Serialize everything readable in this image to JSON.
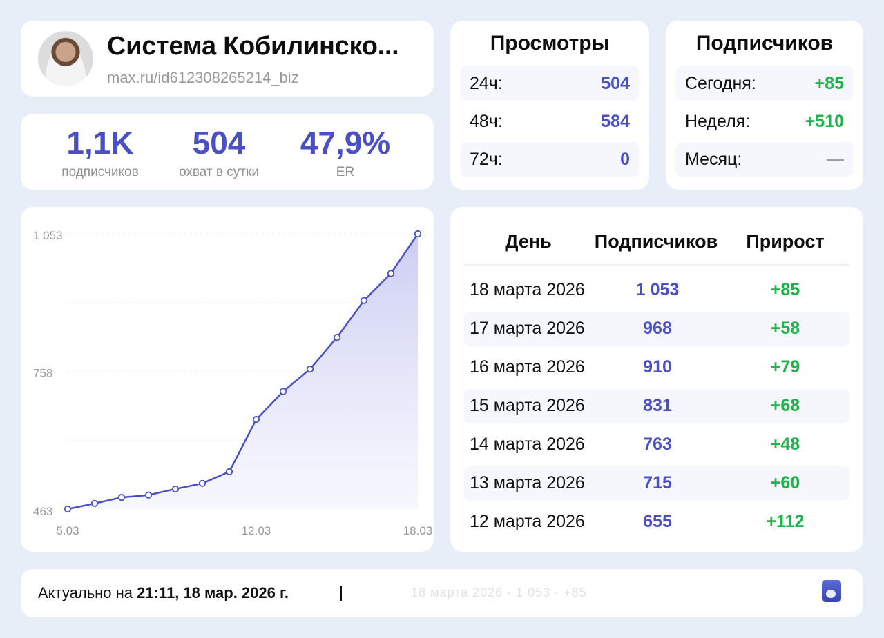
{
  "profile": {
    "name": "Система Кобилинско...",
    "url": "max.ru/id612308265214_biz",
    "avatar_icon": "user-photo"
  },
  "stats": [
    {
      "value": "1,1K",
      "label": "подписчиков"
    },
    {
      "value": "504",
      "label": "охват в сутки"
    },
    {
      "value": "47,9%",
      "label": "ER"
    }
  ],
  "views": {
    "title": "Просмотры",
    "rows": [
      {
        "key": "24ч:",
        "value": "504"
      },
      {
        "key": "48ч:",
        "value": "584"
      },
      {
        "key": "72ч:",
        "value": "0"
      }
    ]
  },
  "subscribers": {
    "title": "Подписчиков",
    "rows": [
      {
        "key": "Сегодня:",
        "value": "+85"
      },
      {
        "key": "Неделя:",
        "value": "+510"
      },
      {
        "key": "Месяц:",
        "value": "—"
      }
    ]
  },
  "chart_data": {
    "type": "area",
    "title": "",
    "xlabel": "",
    "ylabel": "",
    "x": [
      "5.03",
      "6.03",
      "7.03",
      "8.03",
      "9.03",
      "10.03",
      "11.03",
      "12.03",
      "13.03",
      "14.03",
      "15.03",
      "16.03",
      "17.03",
      "18.03"
    ],
    "values": [
      463,
      475,
      488,
      493,
      506,
      518,
      543,
      655,
      715,
      763,
      831,
      910,
      968,
      1053
    ],
    "y_ticks": [
      "1 053",
      "758",
      "463"
    ],
    "x_ticks": [
      "5.03",
      "12.03",
      "18.03"
    ],
    "ylim": [
      463,
      1053
    ],
    "grid": true,
    "line_color": "#4a4fc4",
    "fill_color": "#d6d8f5"
  },
  "table": {
    "headers": [
      "День",
      "Подписчиков",
      "Прирост"
    ],
    "rows": [
      {
        "day": "18 марта 2026",
        "subs": "1 053",
        "growth": "+85"
      },
      {
        "day": "17 марта 2026",
        "subs": "968",
        "growth": "+58"
      },
      {
        "day": "16 марта 2026",
        "subs": "910",
        "growth": "+79"
      },
      {
        "day": "15 марта 2026",
        "subs": "831",
        "growth": "+68"
      },
      {
        "day": "14 марта 2026",
        "subs": "763",
        "growth": "+48"
      },
      {
        "day": "13 марта 2026",
        "subs": "715",
        "growth": "+60"
      },
      {
        "day": "12 марта 2026",
        "subs": "655",
        "growth": "+112"
      }
    ]
  },
  "footer": {
    "updated_prefix": "Актуально на",
    "updated_time": "21:11, 18 мар. 2026 г.",
    "ticker": "18 марта 2026 · 1 053 · +85"
  },
  "colors": {
    "accent": "#4a4fc4",
    "positive": "#22b24c",
    "muted": "#9a9a9a",
    "background": "#e8eef8"
  }
}
